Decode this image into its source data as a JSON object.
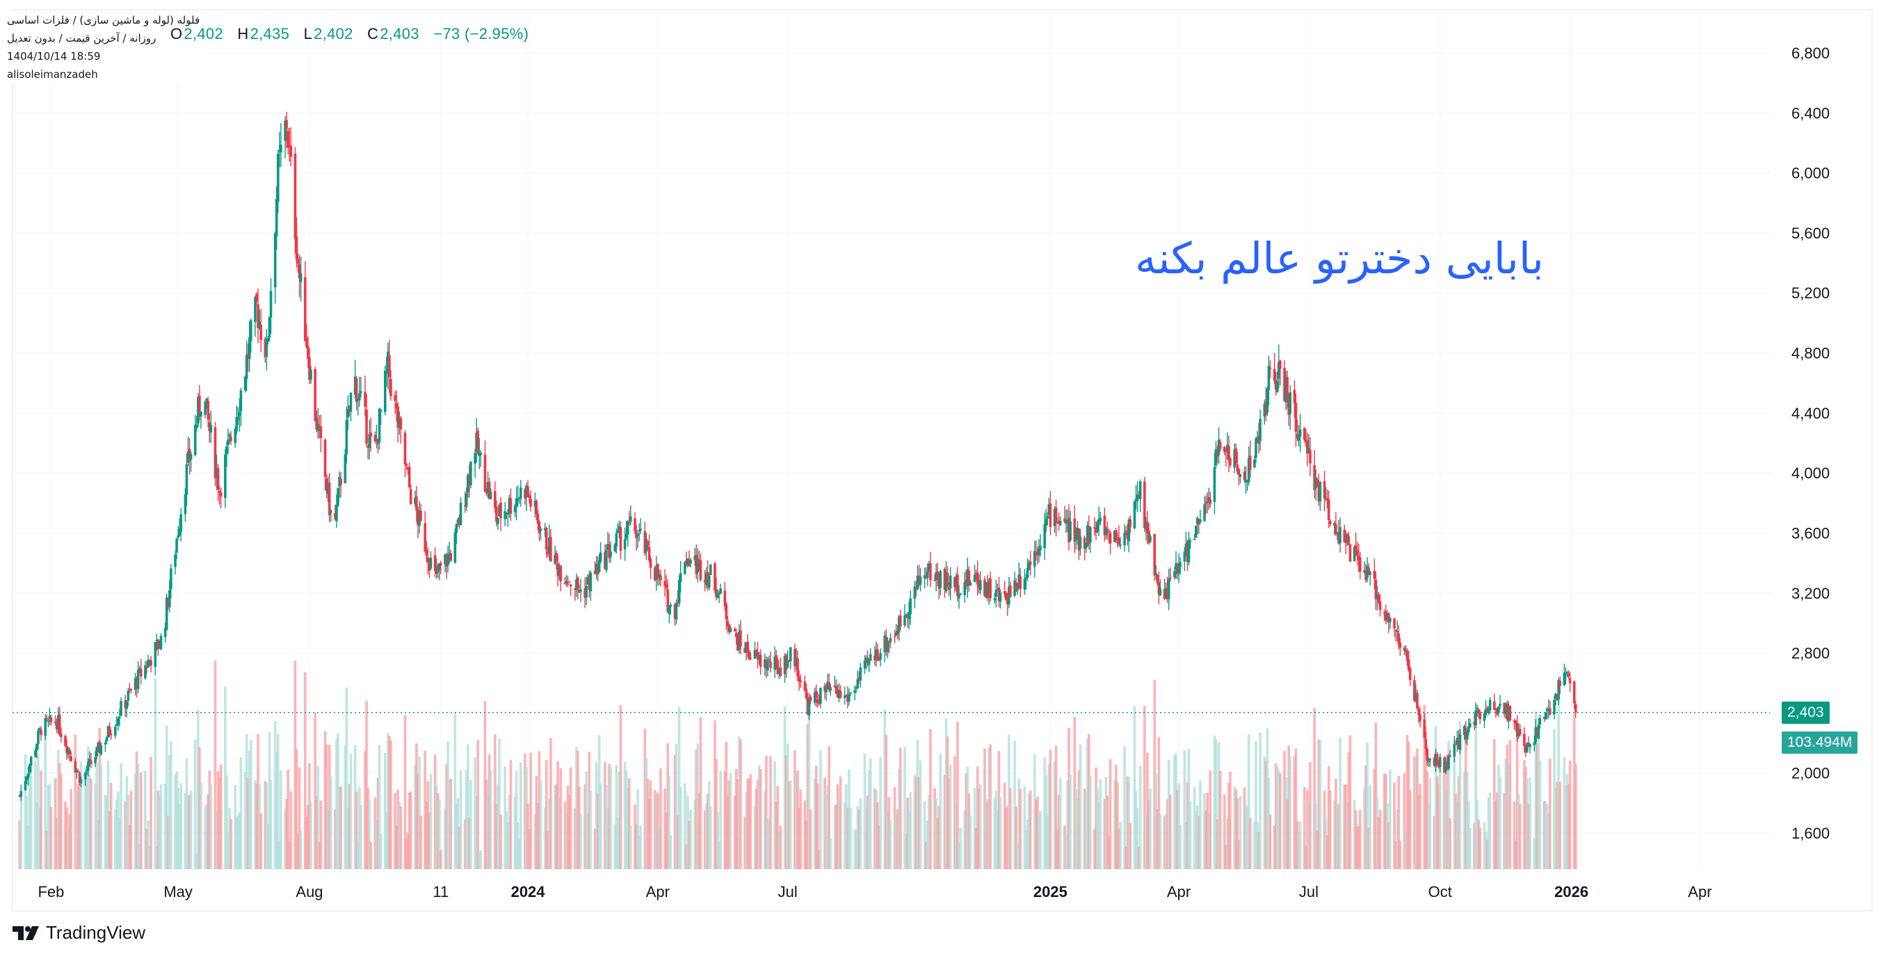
{
  "header": {
    "symbol_line": "فلوله (لوله و ماشین سازی) / فلزات اساسی",
    "interval_line": "روزانه / آخرین قیمت / بدون تعدیل",
    "datetime": "1404/10/14 18:59",
    "author": "alisoleimanzadeh",
    "ohlc": {
      "o_label": "O",
      "o_value": "2,402",
      "h_label": "H",
      "h_value": "2,435",
      "l_label": "L",
      "l_value": "2,402",
      "c_label": "C",
      "c_value": "2,403",
      "change": "−73 (−2.95%)"
    }
  },
  "annotation_text": "بابایی دخترتو عالم بکنه",
  "price_badge": "2,403",
  "volume_badge": "103.494M",
  "branding": "TradingView",
  "colors": {
    "up": "#089981",
    "down": "#f23645",
    "up_volume": "#b2dfdb",
    "down_volume": "#faa1a4",
    "annotation": "#2962ff",
    "grid": "#f0f3fa",
    "axis_text": "#131722",
    "last_price_line": "#089981"
  },
  "chart_data": {
    "type": "candlestick",
    "interval": "daily",
    "y_axis_ticks": [
      "6,800",
      "6,400",
      "6,000",
      "5,600",
      "5,200",
      "4,800",
      "4,400",
      "4,000",
      "3,600",
      "3,200",
      "2,800",
      "2,000",
      "1,600"
    ],
    "ylim": [
      1350,
      7050
    ],
    "x_axis_labels": [
      "Feb",
      "May",
      "Aug",
      "11",
      "2024",
      "Apr",
      "Jul",
      "2025",
      "Apr",
      "Jul",
      "Oct",
      "2026",
      "Apr"
    ],
    "xlim": [
      "2023-01-05",
      "2026-05-20"
    ],
    "last_price": 2403,
    "last_volume": "103.494M",
    "price_path": [
      {
        "date": "2023-01-10",
        "close": 1850
      },
      {
        "date": "2023-01-25",
        "close": 2300
      },
      {
        "date": "2023-02-05",
        "close": 2350
      },
      {
        "date": "2023-02-22",
        "close": 1950
      },
      {
        "date": "2023-03-12",
        "close": 2250
      },
      {
        "date": "2023-04-01",
        "close": 2600
      },
      {
        "date": "2023-04-20",
        "close": 2900
      },
      {
        "date": "2023-05-05",
        "close": 3900
      },
      {
        "date": "2023-05-18",
        "close": 4550
      },
      {
        "date": "2023-05-30",
        "close": 3900
      },
      {
        "date": "2023-06-12",
        "close": 4450
      },
      {
        "date": "2023-06-25",
        "close": 5100
      },
      {
        "date": "2023-07-02",
        "close": 4800
      },
      {
        "date": "2023-07-10",
        "close": 6000
      },
      {
        "date": "2023-07-16",
        "close": 6350
      },
      {
        "date": "2023-07-25",
        "close": 5300
      },
      {
        "date": "2023-08-05",
        "close": 4400
      },
      {
        "date": "2023-08-18",
        "close": 3600
      },
      {
        "date": "2023-09-01",
        "close": 4650
      },
      {
        "date": "2023-09-15",
        "close": 4100
      },
      {
        "date": "2023-09-25",
        "close": 4700
      },
      {
        "date": "2023-10-10",
        "close": 3900
      },
      {
        "date": "2023-10-28",
        "close": 3300
      },
      {
        "date": "2023-11-10",
        "close": 3500
      },
      {
        "date": "2023-11-25",
        "close": 4200
      },
      {
        "date": "2023-12-10",
        "close": 3700
      },
      {
        "date": "2023-12-30",
        "close": 3900
      },
      {
        "date": "2024-01-20",
        "close": 3400
      },
      {
        "date": "2024-02-08",
        "close": 3200
      },
      {
        "date": "2024-02-28",
        "close": 3500
      },
      {
        "date": "2024-03-15",
        "close": 3650
      },
      {
        "date": "2024-03-28",
        "close": 3400
      },
      {
        "date": "2024-04-12",
        "close": 3050
      },
      {
        "date": "2024-04-20",
        "close": 3450
      },
      {
        "date": "2024-05-10",
        "close": 3300
      },
      {
        "date": "2024-05-25",
        "close": 2900
      },
      {
        "date": "2024-06-10",
        "close": 2750
      },
      {
        "date": "2024-06-25",
        "close": 2700
      },
      {
        "date": "2024-07-05",
        "close": 2800
      },
      {
        "date": "2024-07-15",
        "close": 2450
      },
      {
        "date": "2024-07-28",
        "close": 2550
      },
      {
        "date": "2024-08-12",
        "close": 2500
      },
      {
        "date": "2024-08-28",
        "close": 2750
      },
      {
        "date": "2024-09-15",
        "close": 2950
      },
      {
        "date": "2024-10-05",
        "close": 3350
      },
      {
        "date": "2024-10-25",
        "close": 3250
      },
      {
        "date": "2024-11-10",
        "close": 3300
      },
      {
        "date": "2024-11-28",
        "close": 3150
      },
      {
        "date": "2024-12-15",
        "close": 3350
      },
      {
        "date": "2025-01-02",
        "close": 3750
      },
      {
        "date": "2025-01-20",
        "close": 3550
      },
      {
        "date": "2025-02-05",
        "close": 3650
      },
      {
        "date": "2025-02-20",
        "close": 3550
      },
      {
        "date": "2025-03-05",
        "close": 3850
      },
      {
        "date": "2025-03-20",
        "close": 3150
      },
      {
        "date": "2025-04-05",
        "close": 3450
      },
      {
        "date": "2025-04-20",
        "close": 3750
      },
      {
        "date": "2025-05-01",
        "close": 4250
      },
      {
        "date": "2025-05-15",
        "close": 3950
      },
      {
        "date": "2025-05-25",
        "close": 4150
      },
      {
        "date": "2025-06-05",
        "close": 4700
      },
      {
        "date": "2025-06-15",
        "close": 4550
      },
      {
        "date": "2025-06-28",
        "close": 4150
      },
      {
        "date": "2025-07-10",
        "close": 3850
      },
      {
        "date": "2025-07-25",
        "close": 3550
      },
      {
        "date": "2025-08-15",
        "close": 3250
      },
      {
        "date": "2025-08-30",
        "close": 2950
      },
      {
        "date": "2025-09-08",
        "close": 2750
      },
      {
        "date": "2025-09-22",
        "close": 2100
      },
      {
        "date": "2025-10-05",
        "close": 2050
      },
      {
        "date": "2025-10-20",
        "close": 2300
      },
      {
        "date": "2025-11-01",
        "close": 2450
      },
      {
        "date": "2025-11-15",
        "close": 2450
      },
      {
        "date": "2025-11-30",
        "close": 2150
      },
      {
        "date": "2025-12-15",
        "close": 2400
      },
      {
        "date": "2025-12-30",
        "close": 2700
      },
      {
        "date": "2026-01-04",
        "close": 2403
      }
    ]
  }
}
